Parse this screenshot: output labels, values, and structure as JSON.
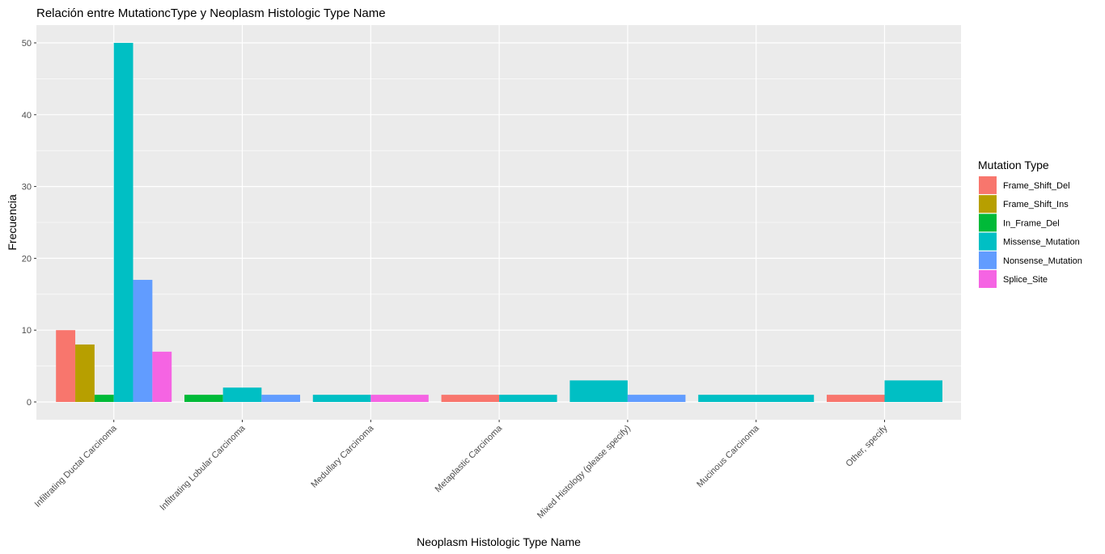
{
  "chart_data": {
    "type": "bar",
    "title": "Relación entre MutationcType y Neoplasm Histologic Type Name",
    "xlabel": "Neoplasm Histologic Type Name",
    "ylabel": "Frecuencia",
    "ylim": [
      0,
      50
    ],
    "yticks": [
      0,
      10,
      20,
      30,
      40,
      50
    ],
    "grid": true,
    "legend_title": "Mutation Type",
    "legend_position": "right",
    "categories": [
      "Infiltrating Ductal Carcinoma",
      "Infiltrating Lobular Carcinoma",
      "Medullary Carcinoma",
      "Metaplastic Carcinoma",
      "Mixed Histology (please specify)",
      "Mucinous Carcinoma",
      "Other, specify"
    ],
    "series": [
      {
        "name": "Frame_Shift_Del",
        "color": "#F8766D",
        "values": [
          10,
          null,
          null,
          1,
          null,
          null,
          1
        ]
      },
      {
        "name": "Frame_Shift_Ins",
        "color": "#B79F00",
        "values": [
          8,
          null,
          null,
          null,
          null,
          null,
          null
        ]
      },
      {
        "name": "In_Frame_Del",
        "color": "#00BA38",
        "values": [
          1,
          1,
          null,
          null,
          null,
          null,
          null
        ]
      },
      {
        "name": "Missense_Mutation",
        "color": "#00BFC4",
        "values": [
          50,
          2,
          1,
          1,
          3,
          1,
          3
        ]
      },
      {
        "name": "Nonsense_Mutation",
        "color": "#619CFF",
        "values": [
          17,
          1,
          null,
          null,
          1,
          null,
          null
        ]
      },
      {
        "name": "Splice_Site",
        "color": "#F564E3",
        "values": [
          7,
          null,
          1,
          null,
          null,
          null,
          null
        ]
      }
    ]
  }
}
